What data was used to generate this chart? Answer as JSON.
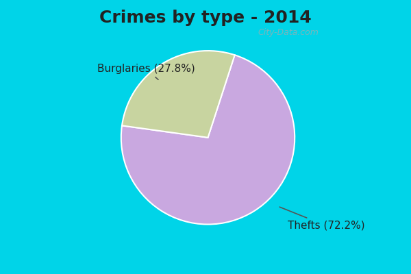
{
  "title": "Crimes by type - 2014",
  "slices": [
    {
      "label": "Thefts",
      "pct": 72.2,
      "color": "#C9A8E0"
    },
    {
      "label": "Burglaries",
      "pct": 27.8,
      "color": "#C8D4A0"
    }
  ],
  "bg_color_top": "#00D4E8",
  "bg_color_main": "#C8EED8",
  "title_fontsize": 18,
  "label_fontsize": 11,
  "watermark": "City-Data.com",
  "annotation_burglaries": "Burglaries (27.8%)",
  "annotation_thefts": "Thefts (72.2%)"
}
